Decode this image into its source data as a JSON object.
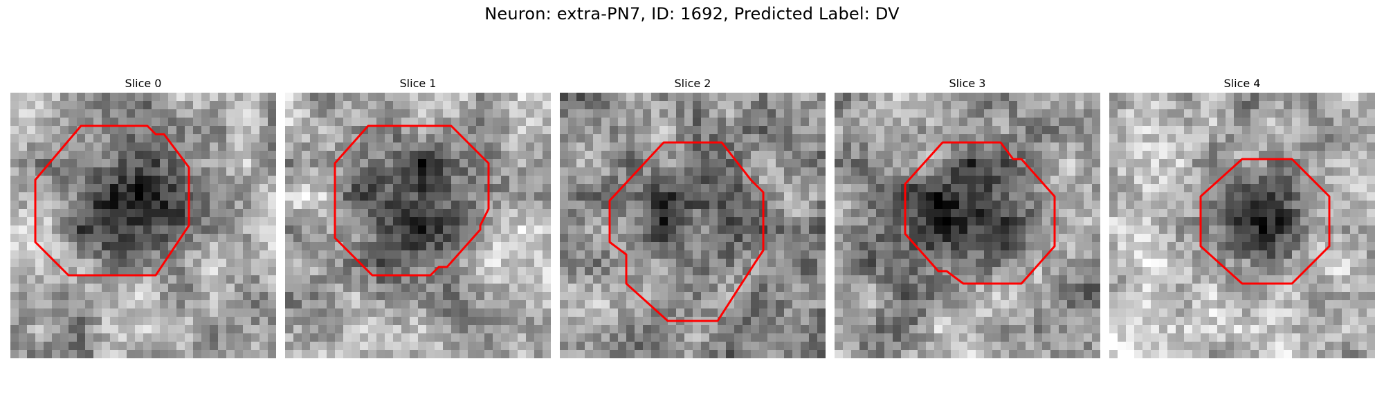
{
  "figure": {
    "title": "Neuron: extra-PN7, ID: 1692, Predicted Label: DV"
  },
  "panels": [
    {
      "title": "Slice 0"
    },
    {
      "title": "Slice 1"
    },
    {
      "title": "Slice 2"
    },
    {
      "title": "Slice 3"
    },
    {
      "title": "Slice 4"
    }
  ],
  "colors": {
    "background": "#ffffff",
    "contour": "#ff0000",
    "grayscale_min": "#000000",
    "grayscale_max": "#ffffff"
  }
}
